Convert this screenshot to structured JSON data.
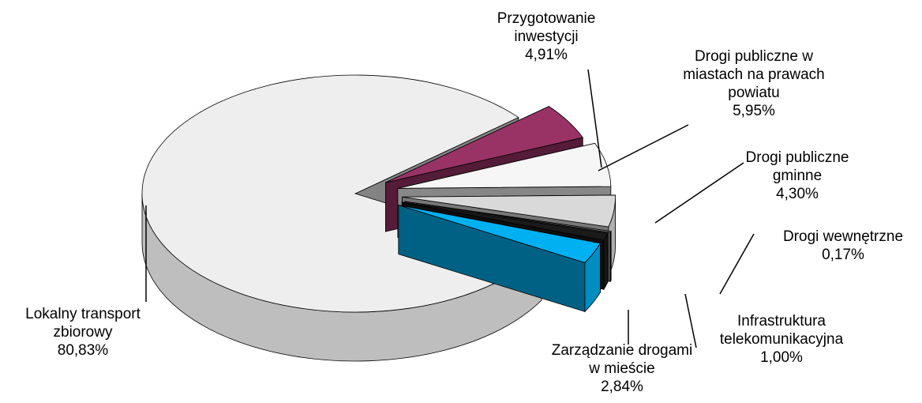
{
  "chart_data": {
    "type": "pie3d",
    "categories": [
      "Lokalny transport zbiorowy",
      "Przygotowanie inwestycji",
      "Drogi publiczne w miastach na prawach powiatu",
      "Drogi publiczne gminne",
      "Drogi wewnętrzne",
      "Infrastruktura telekomunikacyjna",
      "Zarządzanie drogami w mieście"
    ],
    "values": [
      80.83,
      4.91,
      5.95,
      4.3,
      0.17,
      1.0,
      2.84
    ],
    "value_labels": [
      "80,83%",
      "4,91%",
      "5,95%",
      "4,30%",
      "0,17%",
      "1,00%",
      "2,84%"
    ],
    "colors": [
      "#eeeeee",
      "#993366",
      "#f6f6f6",
      "#d9d9d9",
      "#808080",
      "#1a1a1a",
      "#00b0f0"
    ]
  }
}
